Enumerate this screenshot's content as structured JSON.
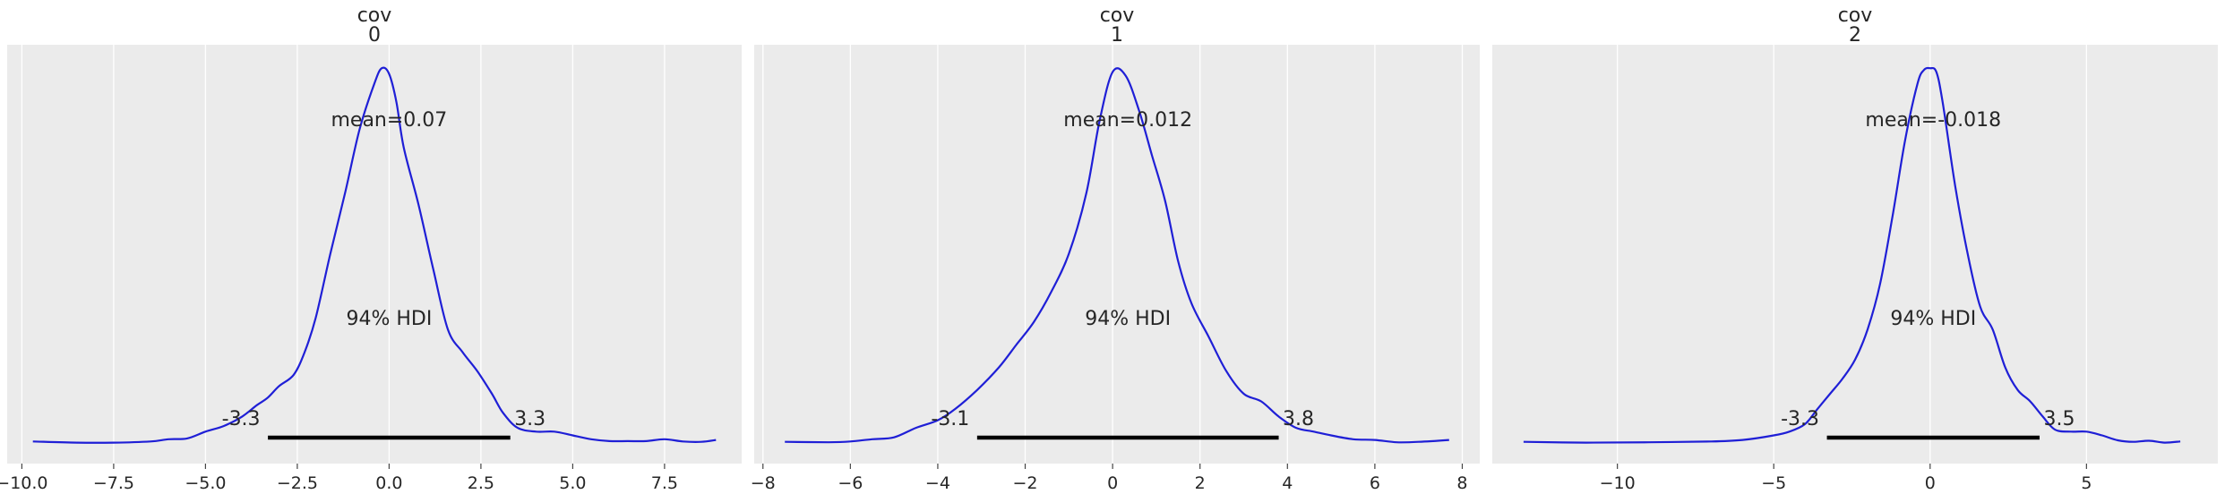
{
  "chart_data": [
    {
      "type": "line",
      "title": [
        "cov",
        "0"
      ],
      "xlim": [
        -10.4,
        9.6
      ],
      "xticks": [
        -10,
        -7.5,
        -5,
        -2.5,
        0,
        2.5,
        5,
        7.5
      ],
      "xtick_labels": [
        "−10.0",
        "−7.5",
        "−5.0",
        "−2.5",
        "0.0",
        "2.5",
        "5.0",
        "7.5"
      ],
      "grid": true,
      "line_color": "#1f1fd6",
      "series": [
        {
          "x": [
            -9.7,
            -8.5,
            -7.5,
            -6.5,
            -6.0,
            -5.5,
            -5.0,
            -4.5,
            -4.0,
            -3.6,
            -3.3,
            -3.0,
            -2.6,
            -2.3,
            -2.0,
            -1.6,
            -1.2,
            -0.8,
            -0.4,
            -0.2,
            0.0,
            0.2,
            0.4,
            0.8,
            1.2,
            1.6,
            2.0,
            2.4,
            2.8,
            3.1,
            3.5,
            4.0,
            4.5,
            5.0,
            5.5,
            6.0,
            6.5,
            7.0,
            7.5,
            8.0,
            8.5,
            8.9
          ],
          "y": [
            0.004,
            0.001,
            0.001,
            0.004,
            0.01,
            0.012,
            0.03,
            0.045,
            0.07,
            0.1,
            0.12,
            0.15,
            0.18,
            0.24,
            0.33,
            0.5,
            0.66,
            0.83,
            0.95,
            0.99,
            0.975,
            0.9,
            0.78,
            0.63,
            0.46,
            0.3,
            0.24,
            0.19,
            0.13,
            0.08,
            0.04,
            0.03,
            0.03,
            0.02,
            0.01,
            0.005,
            0.005,
            0.005,
            0.01,
            0.004,
            0.003,
            0.008
          ]
        }
      ],
      "annotations": {
        "mean": "mean=0.07",
        "hdi": "94% HDI",
        "hdi_low": -3.3,
        "hdi_high": 3.3,
        "hdi_low_label": "-3.3",
        "hdi_high_label": "3.3"
      }
    },
    {
      "type": "line",
      "title": [
        "cov",
        "1"
      ],
      "xlim": [
        -8.2,
        8.4
      ],
      "xticks": [
        -8,
        -6,
        -4,
        -2,
        0,
        2,
        4,
        6,
        8
      ],
      "xtick_labels": [
        "−8",
        "−6",
        "−4",
        "−2",
        "0",
        "2",
        "4",
        "6",
        "8"
      ],
      "grid": true,
      "line_color": "#1f1fd6",
      "series": [
        {
          "x": [
            -7.5,
            -6.5,
            -6.0,
            -5.5,
            -5.0,
            -4.5,
            -4.0,
            -3.6,
            -3.1,
            -2.6,
            -2.2,
            -1.8,
            -1.4,
            -1.0,
            -0.6,
            -0.3,
            0.0,
            0.3,
            0.6,
            0.9,
            1.2,
            1.5,
            1.8,
            2.2,
            2.6,
            3.0,
            3.4,
            3.8,
            4.2,
            4.6,
            5.0,
            5.5,
            6.0,
            6.5,
            7.0,
            7.7
          ],
          "y": [
            0.003,
            0.002,
            0.004,
            0.01,
            0.015,
            0.04,
            0.06,
            0.09,
            0.14,
            0.2,
            0.26,
            0.32,
            0.4,
            0.5,
            0.66,
            0.85,
            0.98,
            0.97,
            0.88,
            0.76,
            0.64,
            0.48,
            0.37,
            0.28,
            0.19,
            0.13,
            0.11,
            0.07,
            0.04,
            0.03,
            0.02,
            0.01,
            0.008,
            0.002,
            0.003,
            0.008
          ]
        }
      ],
      "annotations": {
        "mean": "mean=0.012",
        "hdi": "94% HDI",
        "hdi_low": -3.1,
        "hdi_high": 3.8,
        "hdi_low_label": "-3.1",
        "hdi_high_label": "3.8"
      }
    },
    {
      "type": "line",
      "title": [
        "cov",
        "2"
      ],
      "xlim": [
        -14.0,
        9.2
      ],
      "xticks": [
        -10,
        -5,
        0,
        5
      ],
      "xtick_labels": [
        "−10",
        "−5",
        "0",
        "5"
      ],
      "grid": true,
      "line_color": "#1f1fd6",
      "series": [
        {
          "x": [
            -13.0,
            -11.0,
            -9.0,
            -7.0,
            -6.0,
            -5.0,
            -4.5,
            -4.0,
            -3.6,
            -3.2,
            -2.8,
            -2.4,
            -2.0,
            -1.6,
            -1.2,
            -0.8,
            -0.4,
            -0.2,
            0.0,
            0.2,
            0.4,
            0.8,
            1.2,
            1.6,
            2.0,
            2.4,
            2.8,
            3.2,
            3.6,
            4.0,
            4.5,
            5.0,
            5.5,
            6.0,
            6.5,
            7.0,
            7.5,
            8.0
          ],
          "y": [
            0.003,
            0.001,
            0.002,
            0.004,
            0.008,
            0.02,
            0.03,
            0.05,
            0.09,
            0.13,
            0.17,
            0.22,
            0.3,
            0.42,
            0.6,
            0.8,
            0.95,
            0.985,
            0.99,
            0.98,
            0.9,
            0.68,
            0.5,
            0.36,
            0.3,
            0.2,
            0.14,
            0.11,
            0.07,
            0.035,
            0.03,
            0.03,
            0.02,
            0.007,
            0.003,
            0.006,
            0.001,
            0.004
          ]
        }
      ],
      "annotations": {
        "mean": "mean=-0.018",
        "hdi": "94% HDI",
        "hdi_low": -3.3,
        "hdi_high": 3.5,
        "hdi_low_label": "-3.3",
        "hdi_high_label": "3.5"
      }
    }
  ]
}
